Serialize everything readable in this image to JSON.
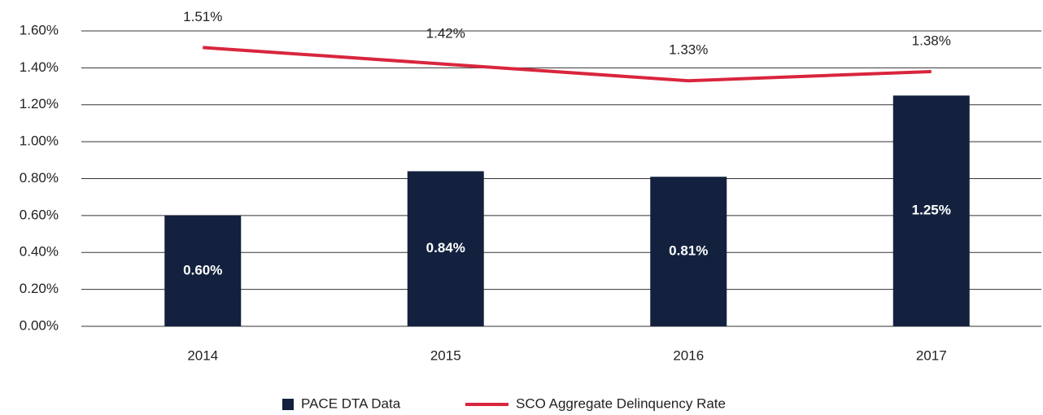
{
  "chart_data": {
    "type": "bar",
    "categories": [
      "2014",
      "2015",
      "2016",
      "2017"
    ],
    "series": [
      {
        "name": "PACE DTA Data",
        "type": "bar",
        "color": "#13213f",
        "values": [
          0.6,
          0.84,
          0.81,
          1.25
        ],
        "value_labels": [
          "0.60%",
          "0.84%",
          "0.81%",
          "1.25%"
        ]
      },
      {
        "name": "SCO Aggregate Delinquency Rate",
        "type": "line",
        "color": "#d9253d",
        "values": [
          1.51,
          1.42,
          1.33,
          1.38
        ],
        "value_labels": [
          "1.51%",
          "1.42%",
          "1.33%",
          "1.38%"
        ]
      }
    ],
    "ylim": [
      0,
      1.6
    ],
    "yticks": [
      {
        "value": 0,
        "label": "0.00%"
      },
      {
        "value": 0.2,
        "label": "0.20%"
      },
      {
        "value": 0.4,
        "label": "0.40%"
      },
      {
        "value": 0.6,
        "label": "0.60%"
      },
      {
        "value": 0.8,
        "label": "0.80%"
      },
      {
        "value": 1.0,
        "label": "1.00%"
      },
      {
        "value": 1.2,
        "label": "1.20%"
      },
      {
        "value": 1.4,
        "label": "1.40%"
      },
      {
        "value": 1.6,
        "label": "1.60%"
      }
    ],
    "grid": true,
    "legend": "bottom"
  }
}
